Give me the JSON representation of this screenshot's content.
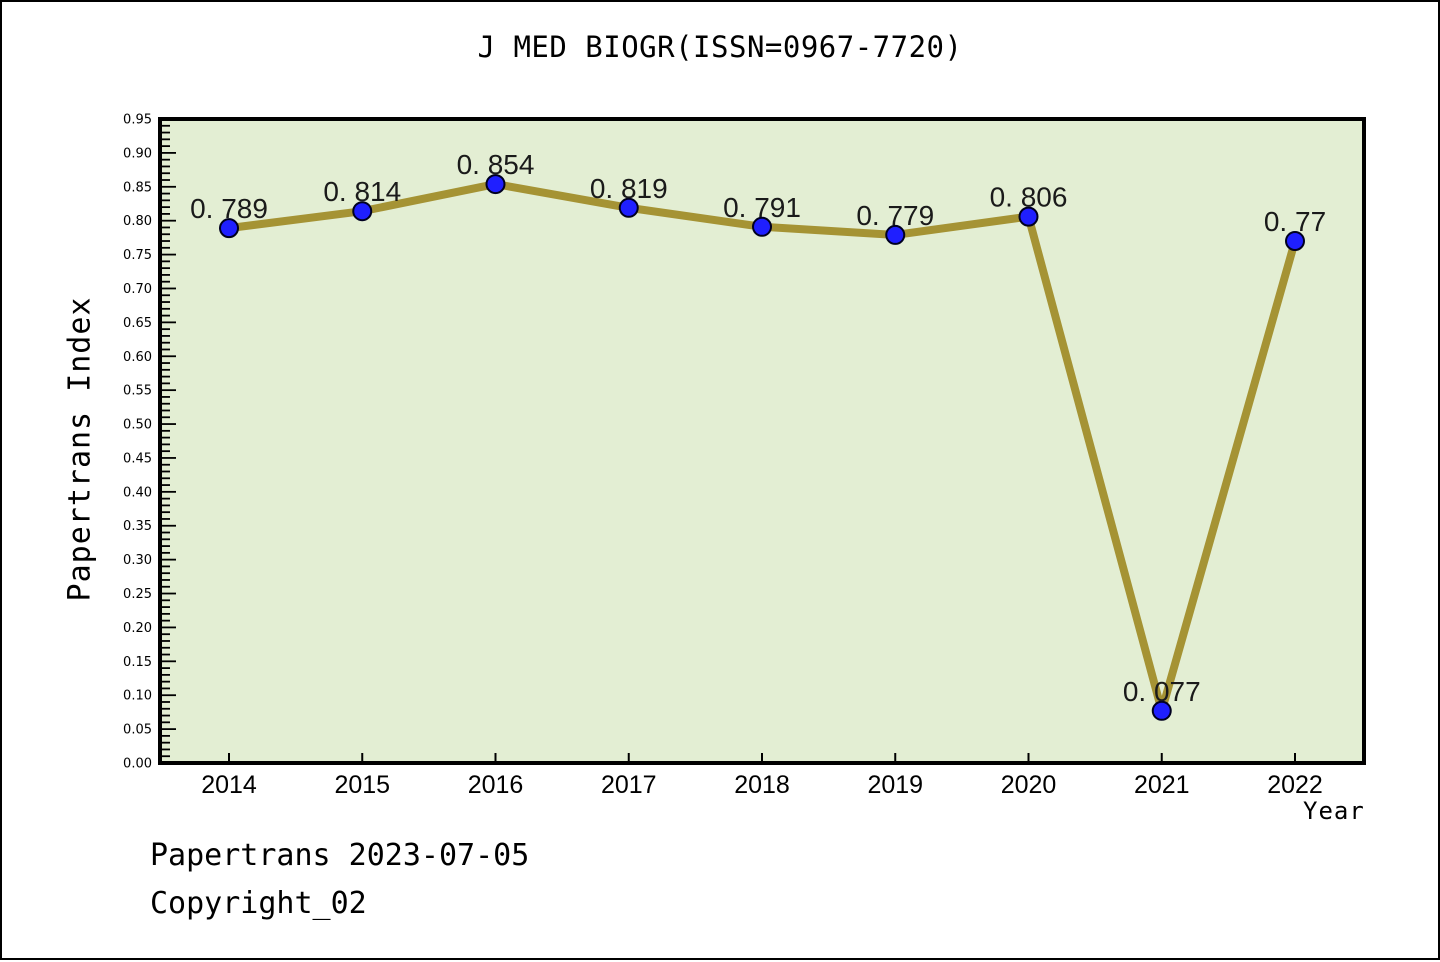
{
  "title": "J MED BIOGR(ISSN=0967-7720)",
  "footer": {
    "line1": "Papertrans 2023-07-05",
    "line2": "Copyright_02"
  },
  "chart_data": {
    "type": "line",
    "title": "J MED BIOGR(ISSN=0967-7720)",
    "xlabel": "Year",
    "ylabel": "Papertrans Index",
    "x": [
      2014,
      2015,
      2016,
      2017,
      2018,
      2019,
      2020,
      2021,
      2022
    ],
    "series": [
      {
        "name": "Papertrans Index",
        "values": [
          0.789,
          0.814,
          0.854,
          0.819,
          0.791,
          0.779,
          0.806,
          0.077,
          0.77
        ]
      }
    ],
    "point_labels": [
      "0.789",
      "0.814",
      "0.854",
      "0.819",
      "0.791",
      "0.779",
      "0.806",
      "0.077",
      "0.77"
    ],
    "ylim": [
      0.0,
      0.95
    ],
    "ytick_step": 0.05,
    "yminor_step": 0.01,
    "grid": false,
    "legend": "none",
    "colors": {
      "line": "#a59334",
      "marker": "#1f1fff",
      "marker_edge": "#000020",
      "plot_bg": "#e3eed3",
      "axis": "#000000",
      "text": "#1a1a1a"
    }
  }
}
